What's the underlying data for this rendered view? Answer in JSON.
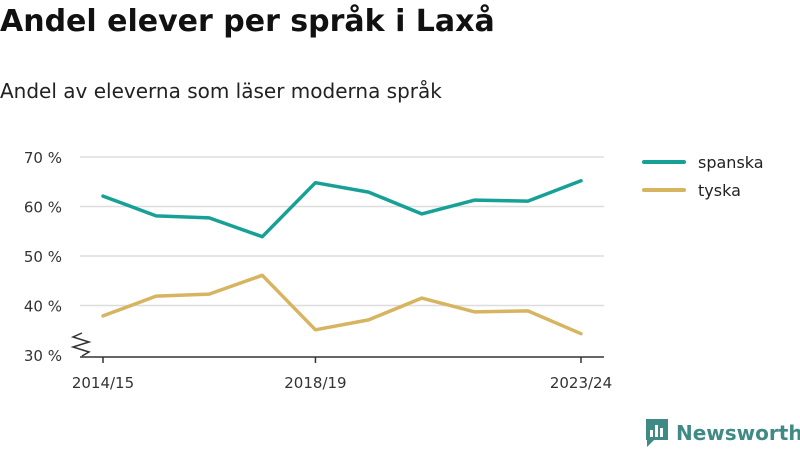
{
  "title": "Andel elever per språk i Laxå",
  "subtitle": "Andel av eleverna som läser moderna språk",
  "brand": {
    "name": "Newsworthy",
    "color": "#3f8a84",
    "icon": "bar-chart-logo-icon"
  },
  "chart_data": {
    "type": "line",
    "x": [
      "2014/15",
      "2015/16",
      "2016/17",
      "2017/18",
      "2018/19",
      "2019/20",
      "2020/21",
      "2021/22",
      "2022/23",
      "2023/24"
    ],
    "x_tick_labels": [
      "2014/15",
      "2018/19",
      "2023/24"
    ],
    "series": [
      {
        "name": "spanska",
        "color": "#17a095",
        "values": [
          62.1,
          58.1,
          57.7,
          53.9,
          64.8,
          62.9,
          58.5,
          61.3,
          61.1,
          65.2
        ]
      },
      {
        "name": "tyska",
        "color": "#d7b460",
        "values": [
          37.9,
          41.9,
          42.3,
          46.1,
          35.1,
          37.1,
          41.5,
          38.7,
          38.9,
          34.3
        ]
      }
    ],
    "y_ticks": [
      30,
      40,
      50,
      60,
      70
    ],
    "y_tick_labels": [
      "30 %",
      "40 %",
      "50 %",
      "60 %",
      "70 %"
    ],
    "ylim": [
      30,
      70
    ],
    "y_axis_break": true,
    "grid": true,
    "legend_position": "right"
  }
}
